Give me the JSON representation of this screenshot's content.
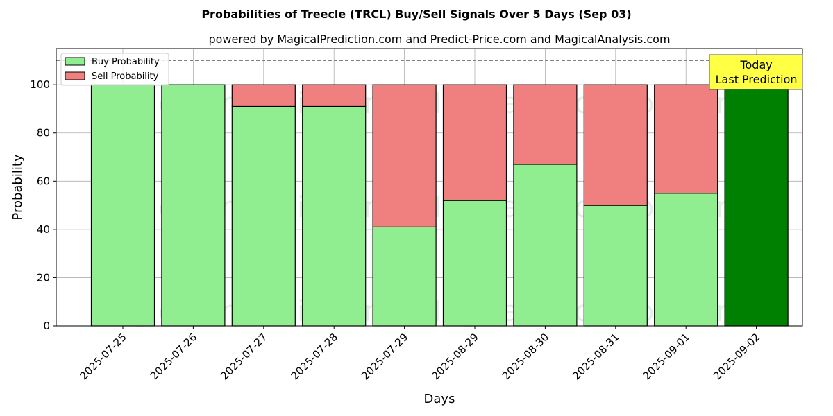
{
  "chart_data": {
    "type": "bar",
    "stacked": true,
    "title": "Probabilities of Treecle (TRCL) Buy/Sell Signals Over 5 Days (Sep 03)",
    "subtitle": "powered by MagicalPrediction.com and Predict-Price.com and MagicalAnalysis.com",
    "xlabel": "Days",
    "ylabel": "Probability",
    "ylim": [
      0,
      115
    ],
    "yticks": [
      0,
      20,
      40,
      60,
      80,
      100
    ],
    "reference_line": 110,
    "grid": true,
    "legend_position": "top-left",
    "categories": [
      "2025-07-25",
      "2025-07-26",
      "2025-07-27",
      "2025-07-28",
      "2025-07-29",
      "2025-08-29",
      "2025-08-30",
      "2025-08-31",
      "2025-09-01",
      "2025-09-02"
    ],
    "series": [
      {
        "name": "Buy Probability",
        "color": "#90ee90",
        "values": [
          100,
          100,
          91,
          91,
          41,
          52,
          67,
          50,
          55,
          100
        ]
      },
      {
        "name": "Sell Probability",
        "color": "#f08080",
        "values": [
          0,
          0,
          9,
          9,
          59,
          48,
          33,
          50,
          45,
          0
        ]
      }
    ],
    "highlight": {
      "index": 9,
      "color": "#008000"
    },
    "annotation": {
      "lines": [
        "Today",
        "Last Prediction"
      ],
      "bg_color": "#ffff44"
    },
    "watermarks": [
      "MagicalAnalysis.com",
      "MagicalPrediction.com"
    ]
  }
}
